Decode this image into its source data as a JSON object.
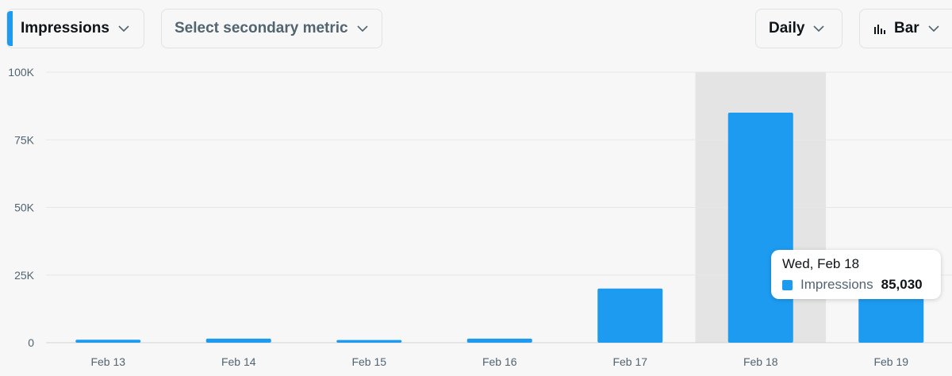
{
  "controls": {
    "primary_metric": "Impressions",
    "secondary_metric": "Select secondary metric",
    "period": "Daily",
    "chart_type": "Bar"
  },
  "colors": {
    "bar": "#1d9bf0",
    "highlight_band": "#e3e4e3",
    "grid": "#e6e8e7",
    "axis": "#cfd4d2"
  },
  "tooltip": {
    "date": "Wed, Feb 18",
    "series": "Impressions",
    "value": "85,030"
  },
  "chart_data": {
    "type": "bar",
    "title": "",
    "xlabel": "",
    "ylabel": "",
    "categories": [
      "Feb 13",
      "Feb 14",
      "Feb 15",
      "Feb 16",
      "Feb 17",
      "Feb 18",
      "Feb 19"
    ],
    "series": [
      {
        "name": "Impressions",
        "values": [
          1100,
          1500,
          1000,
          1500,
          20000,
          85030,
          20000
        ]
      }
    ],
    "ylim": [
      0,
      100000
    ],
    "yticks": [
      0,
      25000,
      50000,
      75000,
      100000
    ],
    "ytick_labels": [
      "0",
      "25K",
      "50K",
      "75K",
      "100K"
    ],
    "highlighted_category": "Feb 18",
    "grid": true
  }
}
